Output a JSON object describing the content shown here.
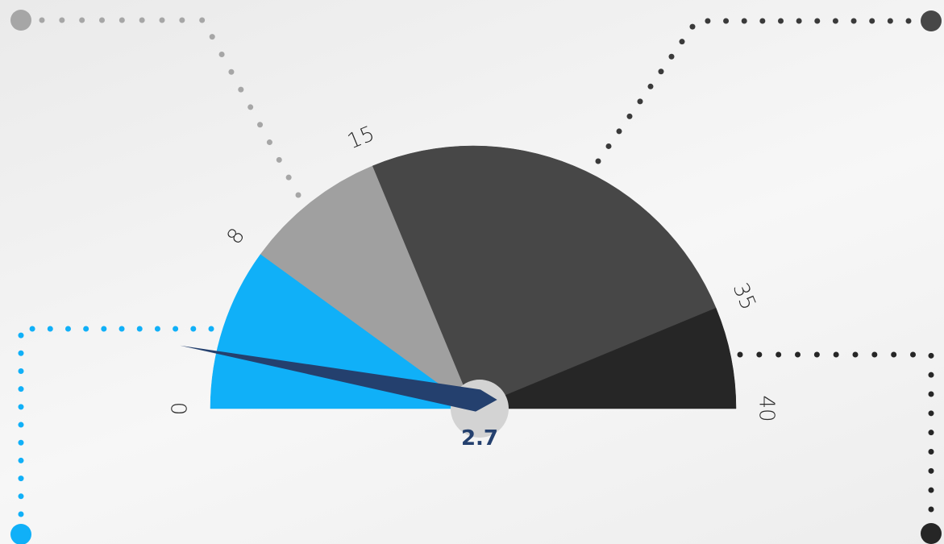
{
  "chart_data": {
    "type": "gauge",
    "min": 0,
    "max": 40,
    "value": 2.7,
    "value_label": "2.7",
    "bands": [
      {
        "from": 0,
        "to": 8,
        "color": "#10b0f8"
      },
      {
        "from": 8,
        "to": 15,
        "color": "#a0a0a0"
      },
      {
        "from": 15,
        "to": 35,
        "color": "#474747"
      },
      {
        "from": 35,
        "to": 40,
        "color": "#262626"
      }
    ],
    "ticks": [
      {
        "value": 0,
        "label": "0"
      },
      {
        "value": 8,
        "label": "8"
      },
      {
        "value": 15,
        "label": "15"
      },
      {
        "value": 35,
        "label": "35"
      },
      {
        "value": 40,
        "label": "40"
      }
    ],
    "needle_color": "#24406e",
    "hub_color": "#d3d3d3"
  }
}
